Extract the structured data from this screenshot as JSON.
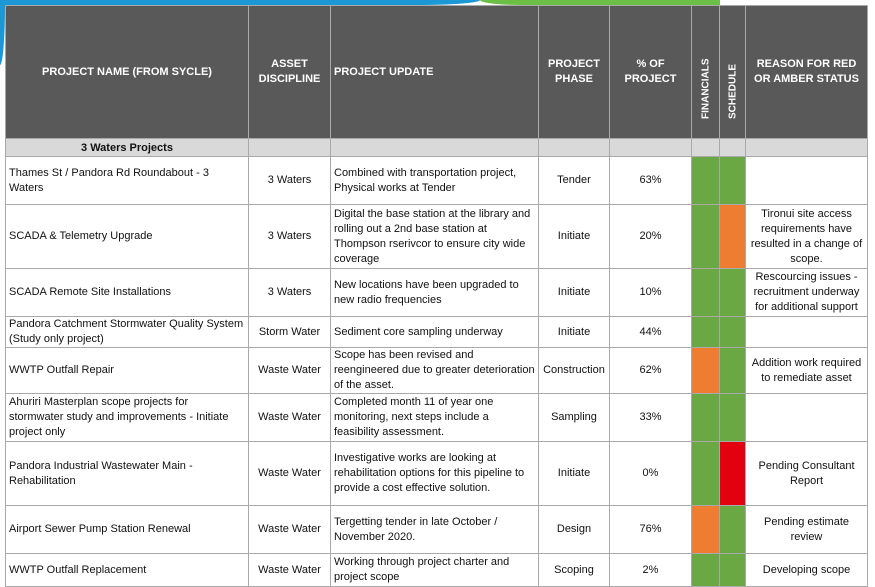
{
  "header": {
    "name": "PROJECT NAME (FROM SYCLE)",
    "discipline": "ASSET DISCIPLINE",
    "update": "PROJECT UPDATE",
    "phase": "PROJECT PHASE",
    "percent": "% OF PROJECT",
    "financials": "FINANCIALS",
    "schedule": "SCHEDULE",
    "reason": "REASON FOR RED OR AMBER STATUS"
  },
  "group": {
    "label": "3 Waters Projects"
  },
  "colors": {
    "green": "#6aa843",
    "orange": "#ee7d31",
    "red": "#e3000f",
    "header_bg": "#595959",
    "group_bg": "#d9d9d9"
  },
  "rows": [
    {
      "name": "Thames St / Pandora Rd Roundabout - 3 Waters",
      "discipline": "3 Waters",
      "update": "Combined with transportation project, Physical works at Tender",
      "phase": "Tender",
      "percent": "63%",
      "financials": "green",
      "schedule": "green",
      "reason": ""
    },
    {
      "name": "SCADA & Telemetry Upgrade",
      "discipline": "3 Waters",
      "update": "Digital the base station at the library and rolling out a 2nd base station at Thompson rserivcor to ensure city wide coverage",
      "phase": "Initiate",
      "percent": "20%",
      "financials": "green",
      "schedule": "orange",
      "reason": "Tironui site access requirements have resulted in a change of scope."
    },
    {
      "name": "SCADA Remote Site Installations",
      "discipline": "3 Waters",
      "update": "New locations have been upgraded to new radio frequencies",
      "phase": "Initiate",
      "percent": "10%",
      "financials": "green",
      "schedule": "green",
      "reason": "Rescourcing issues - recruitment underway for additional support"
    },
    {
      "name": "Pandora Catchment Stormwater Quality System (Study only project)",
      "discipline": "Storm Water",
      "update": "Sediment core sampling underway",
      "phase": "Initiate",
      "percent": "44%",
      "financials": "green",
      "schedule": "green",
      "reason": ""
    },
    {
      "name": "WWTP Outfall Repair",
      "discipline": "Waste Water",
      "update": "Scope has been revised and reengineered due to greater deterioration of the asset.",
      "phase": "Construction",
      "percent": "62%",
      "financials": "orange",
      "schedule": "green",
      "reason": "Addition work required to remediate asset"
    },
    {
      "name": "Ahuriri Masterplan scope projects for stormwater study and improvements - Initiate project only",
      "discipline": "Waste Water",
      "update": "Completed month 11 of year one monitoring, next steps include a feasibility assessment.",
      "phase": "Sampling",
      "percent": "33%",
      "financials": "green",
      "schedule": "green",
      "reason": ""
    },
    {
      "name": "Pandora Industrial Wastewater Main - Rehabilitation",
      "discipline": "Waste Water",
      "update": "Investigative works are looking at rehabilitation options for this pipeline to provide a cost effective solution.",
      "phase": "Initiate",
      "percent": "0%",
      "financials": "green",
      "schedule": "red",
      "reason": "Pending Consultant Report"
    },
    {
      "name": "Airport Sewer Pump Station Renewal",
      "discipline": "Waste Water",
      "update": "Tergetting tender in late October / November 2020.",
      "phase": "Design",
      "percent": "76%",
      "financials": "orange",
      "schedule": "green",
      "reason": "Pending estimate review"
    },
    {
      "name": "WWTP Outfall Replacement",
      "discipline": "Waste Water",
      "update": "Working through project charter and project scope",
      "phase": "Scoping",
      "percent": "2%",
      "financials": "green",
      "schedule": "green",
      "reason": "Developing scope"
    }
  ]
}
